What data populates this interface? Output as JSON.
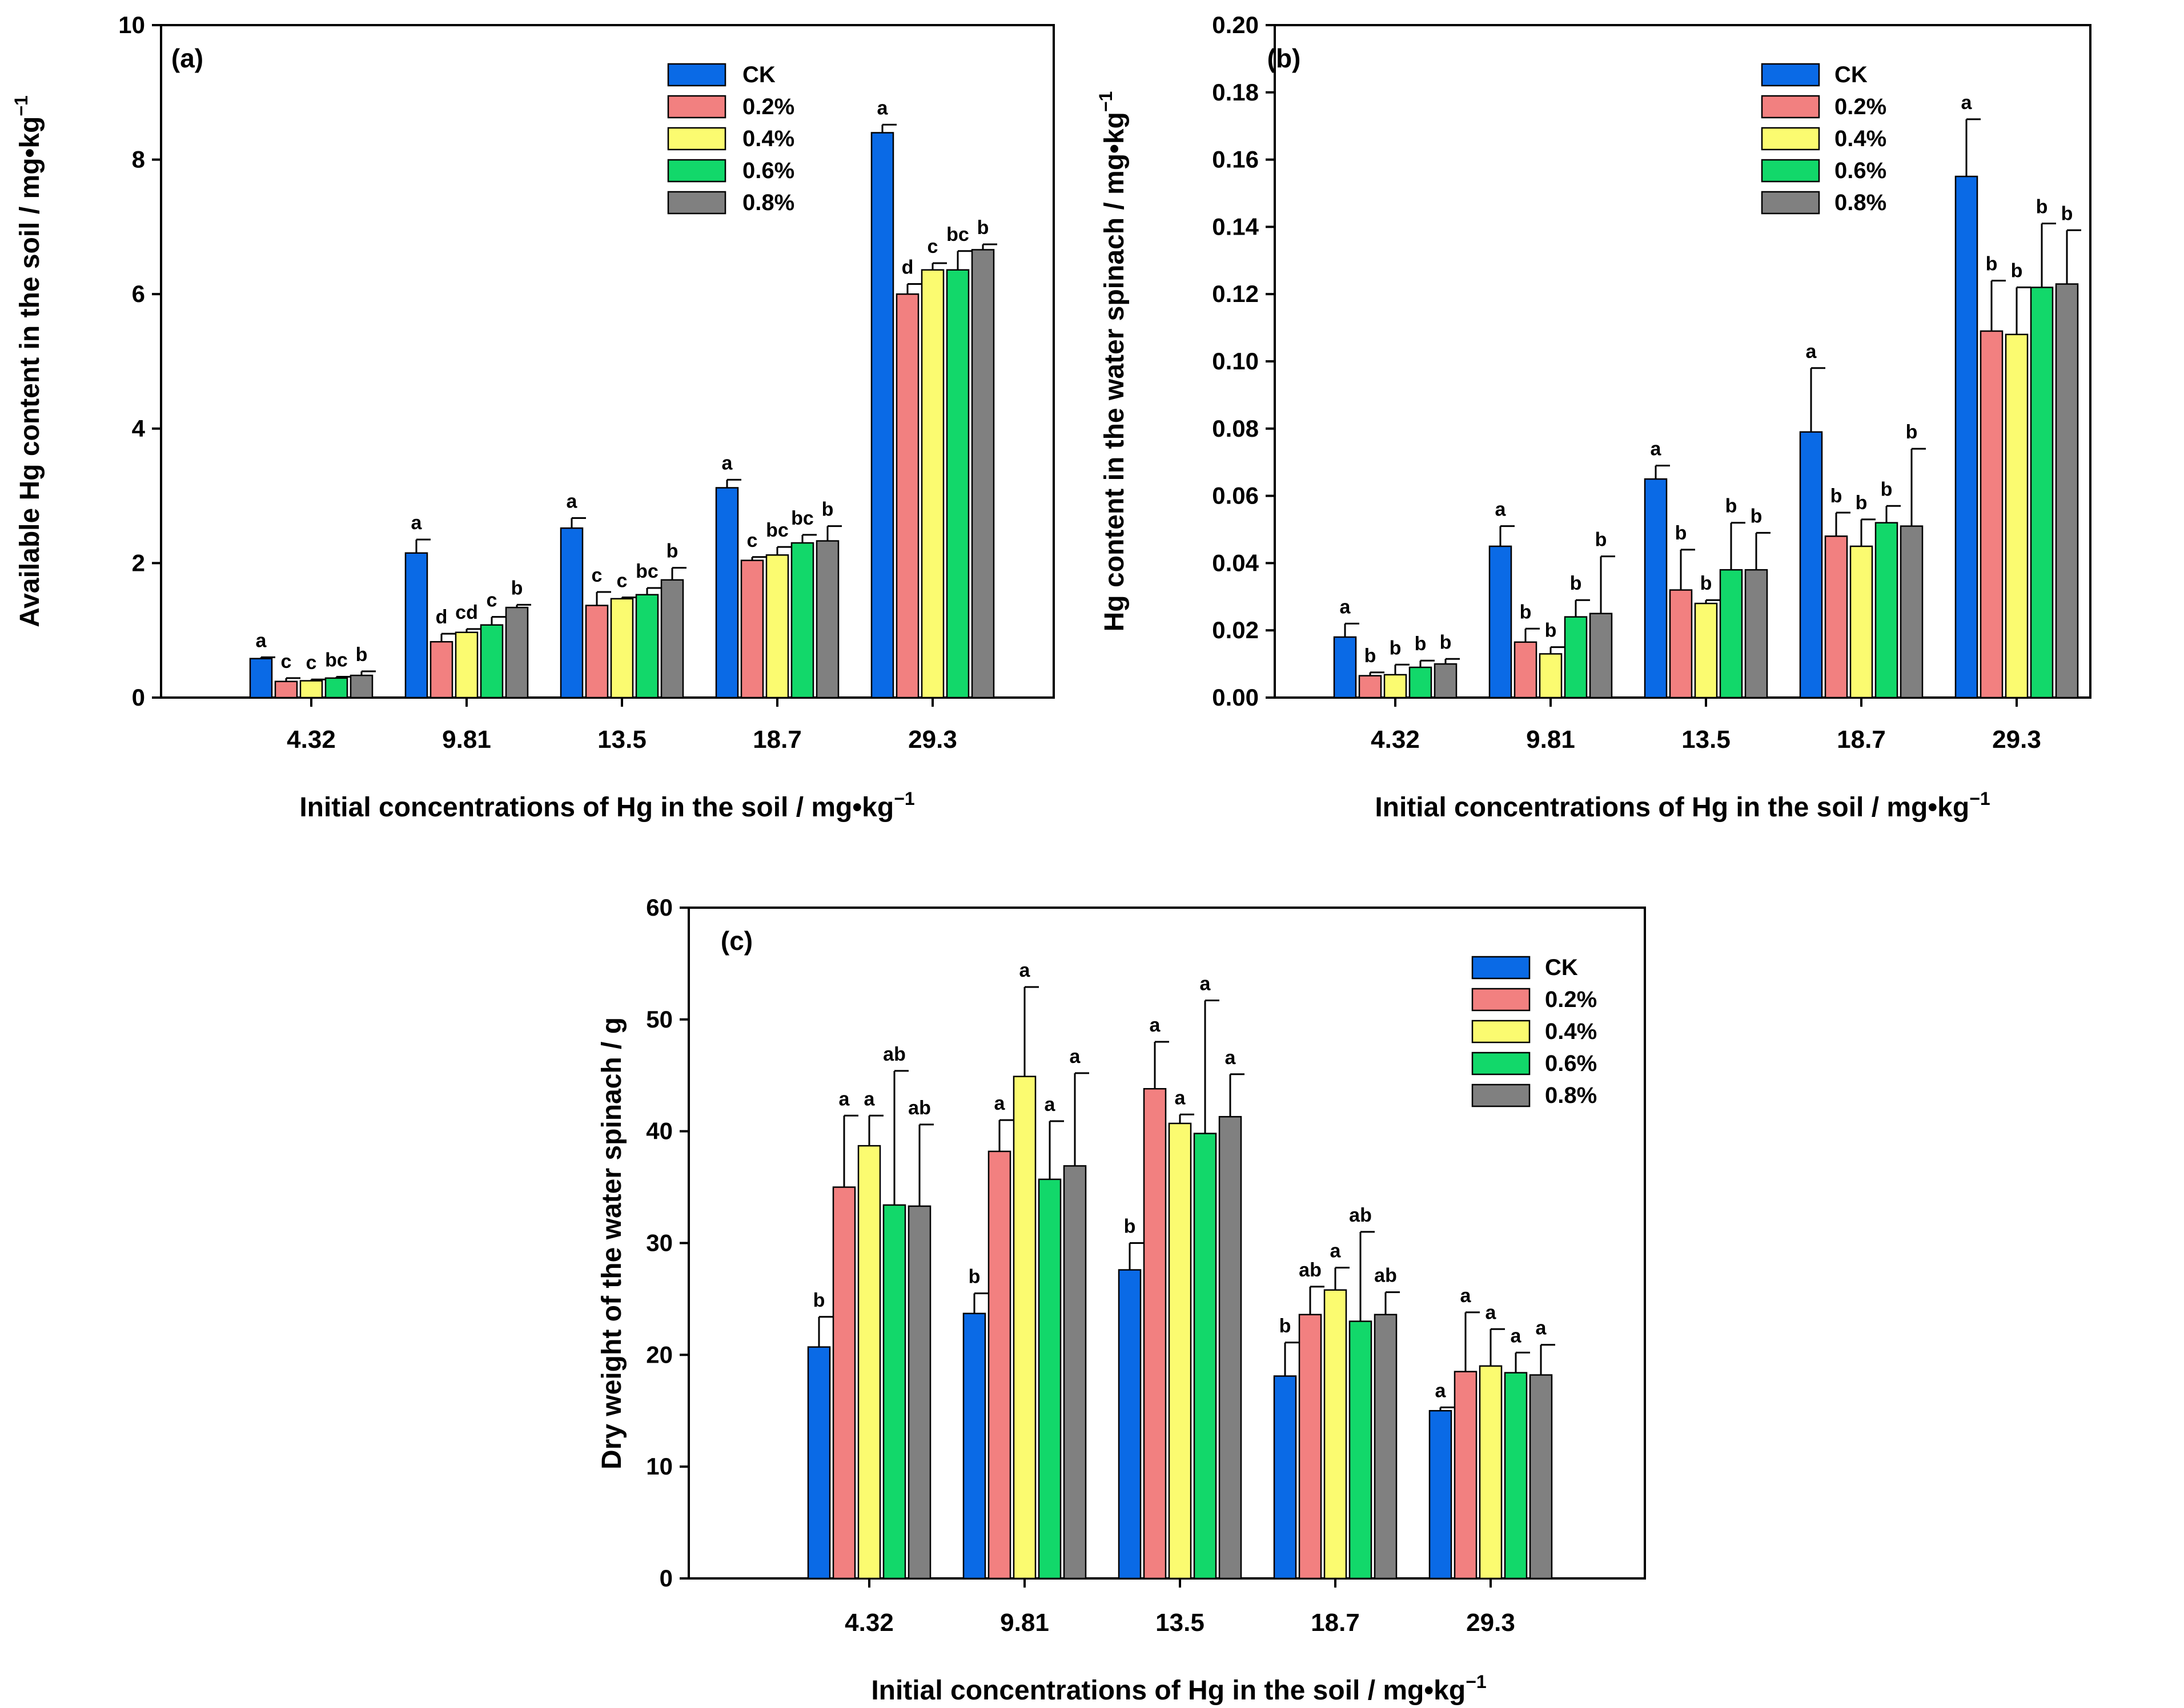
{
  "colors": {
    "CK": "#0a6ae6",
    "0.2%": "#f28080",
    "0.4%": "#fbfb70",
    "0.6%": "#12d86a",
    "0.8%": "#808080"
  },
  "chart_data": [
    {
      "id": "a",
      "type": "bar",
      "panel_label": "(a)",
      "ylabel": "Available Hg content in the soil / mg•kg",
      "ylabel_sup": "−1",
      "xlabel": "Initial concentrations of Hg in the soil / mg•kg",
      "xlabel_sup": "−1",
      "ylim": [
        0,
        10
      ],
      "yticks": [
        0,
        2,
        4,
        6,
        8,
        10
      ],
      "ytick_labels": [
        "0",
        "2",
        "4",
        "6",
        "8",
        "10"
      ],
      "categories": [
        "4.32",
        "9.81",
        "13.5",
        "18.7",
        "29.3"
      ],
      "legend_position": "top-right",
      "series": [
        {
          "name": "CK",
          "values": [
            0.58,
            2.15,
            2.52,
            3.12,
            8.4
          ],
          "errors": [
            0.02,
            0.2,
            0.15,
            0.12,
            0.12
          ],
          "letters": [
            "a",
            "a",
            "a",
            "a",
            "a"
          ]
        },
        {
          "name": "0.2%",
          "values": [
            0.24,
            0.83,
            1.37,
            2.04,
            6.0
          ],
          "errors": [
            0.05,
            0.12,
            0.2,
            0.05,
            0.15
          ],
          "letters": [
            "c",
            "d",
            "c",
            "c",
            "d"
          ]
        },
        {
          "name": "0.4%",
          "values": [
            0.25,
            0.97,
            1.47,
            2.12,
            6.36
          ],
          "errors": [
            0.02,
            0.05,
            0.02,
            0.12,
            0.1
          ],
          "letters": [
            "c",
            "cd",
            "c",
            "bc",
            "c"
          ]
        },
        {
          "name": "0.6%",
          "values": [
            0.29,
            1.08,
            1.53,
            2.3,
            6.36
          ],
          "errors": [
            0.02,
            0.12,
            0.1,
            0.12,
            0.28
          ],
          "letters": [
            "bc",
            "c",
            "bc",
            "bc",
            "bc"
          ]
        },
        {
          "name": "0.8%",
          "values": [
            0.33,
            1.34,
            1.75,
            2.33,
            6.66
          ],
          "errors": [
            0.06,
            0.04,
            0.18,
            0.22,
            0.08
          ],
          "letters": [
            "b",
            "b",
            "b",
            "b",
            "b"
          ]
        }
      ]
    },
    {
      "id": "b",
      "type": "bar",
      "panel_label": "(b)",
      "ylabel": "Hg content in the water spinach / mg•kg",
      "ylabel_sup": "−1",
      "xlabel": "Initial concentrations of Hg in the soil / mg•kg",
      "xlabel_sup": "−1",
      "ylim": [
        0,
        0.2
      ],
      "yticks": [
        0,
        0.02,
        0.04,
        0.06,
        0.08,
        0.1,
        0.12,
        0.14,
        0.16,
        0.18,
        0.2
      ],
      "ytick_labels": [
        "0.00",
        "0.02",
        "0.04",
        "0.06",
        "0.08",
        "0.10",
        "0.12",
        "0.14",
        "0.16",
        "0.18",
        "0.20"
      ],
      "categories": [
        "4.32",
        "9.81",
        "13.5",
        "18.7",
        "29.3"
      ],
      "legend_position": "top-right",
      "series": [
        {
          "name": "CK",
          "values": [
            0.018,
            0.045,
            0.065,
            0.079,
            0.155
          ],
          "errors": [
            0.004,
            0.006,
            0.004,
            0.019,
            0.017
          ],
          "letters": [
            "a",
            "a",
            "a",
            "a",
            "a"
          ]
        },
        {
          "name": "0.2%",
          "values": [
            0.0065,
            0.0165,
            0.032,
            0.048,
            0.109
          ],
          "errors": [
            0.001,
            0.004,
            0.012,
            0.007,
            0.015
          ],
          "letters": [
            "b",
            "b",
            "b",
            "b",
            "b"
          ]
        },
        {
          "name": "0.4%",
          "values": [
            0.0068,
            0.013,
            0.028,
            0.045,
            0.108
          ],
          "errors": [
            0.003,
            0.002,
            0.001,
            0.008,
            0.014
          ],
          "letters": [
            "b",
            "b",
            "b",
            "b",
            "b"
          ]
        },
        {
          "name": "0.6%",
          "values": [
            0.009,
            0.024,
            0.038,
            0.052,
            0.122
          ],
          "errors": [
            0.002,
            0.005,
            0.014,
            0.005,
            0.019
          ],
          "letters": [
            "b",
            "b",
            "b",
            "b",
            "b"
          ]
        },
        {
          "name": "0.8%",
          "values": [
            0.01,
            0.025,
            0.038,
            0.051,
            0.123
          ],
          "errors": [
            0.0015,
            0.017,
            0.011,
            0.023,
            0.016
          ],
          "letters": [
            "b",
            "b",
            "b",
            "b",
            "b"
          ]
        }
      ]
    },
    {
      "id": "c",
      "type": "bar",
      "panel_label": "(c)",
      "ylabel": "Dry weight of the water spinach / g",
      "ylabel_sup": "",
      "xlabel": "Initial concentrations of Hg in the soil / mg•kg",
      "xlabel_sup": "−1",
      "ylim": [
        0,
        60
      ],
      "yticks": [
        0,
        10,
        20,
        30,
        40,
        50,
        60
      ],
      "ytick_labels": [
        "0",
        "10",
        "20",
        "30",
        "40",
        "50",
        "60"
      ],
      "categories": [
        "4.32",
        "9.81",
        "13.5",
        "18.7",
        "29.3"
      ],
      "legend_position": "top-right",
      "series": [
        {
          "name": "CK",
          "values": [
            20.7,
            23.7,
            27.6,
            18.1,
            15.0
          ],
          "errors": [
            2.7,
            1.8,
            2.4,
            3.0,
            0.3
          ],
          "letters": [
            "b",
            "b",
            "b",
            "b",
            "a"
          ]
        },
        {
          "name": "0.2%",
          "values": [
            35.0,
            38.2,
            43.8,
            23.6,
            18.5
          ],
          "errors": [
            6.4,
            2.8,
            4.2,
            2.5,
            5.3
          ],
          "letters": [
            "a",
            "a",
            "a",
            "ab",
            "a"
          ]
        },
        {
          "name": "0.4%",
          "values": [
            38.7,
            44.9,
            40.7,
            25.8,
            19.0
          ],
          "errors": [
            2.7,
            8.0,
            0.8,
            2.0,
            3.3
          ],
          "letters": [
            "a",
            "a",
            "a",
            "a",
            "a"
          ]
        },
        {
          "name": "0.6%",
          "values": [
            33.4,
            35.7,
            39.8,
            23.0,
            18.4
          ],
          "errors": [
            12.0,
            5.2,
            11.9,
            8.0,
            1.8
          ],
          "letters": [
            "ab",
            "a",
            "a",
            "ab",
            "a"
          ]
        },
        {
          "name": "0.8%",
          "values": [
            33.3,
            36.9,
            41.3,
            23.6,
            18.2
          ],
          "errors": [
            7.3,
            8.3,
            3.8,
            2.0,
            2.7
          ],
          "letters": [
            "ab",
            "a",
            "a",
            "ab",
            "a"
          ]
        }
      ]
    }
  ]
}
